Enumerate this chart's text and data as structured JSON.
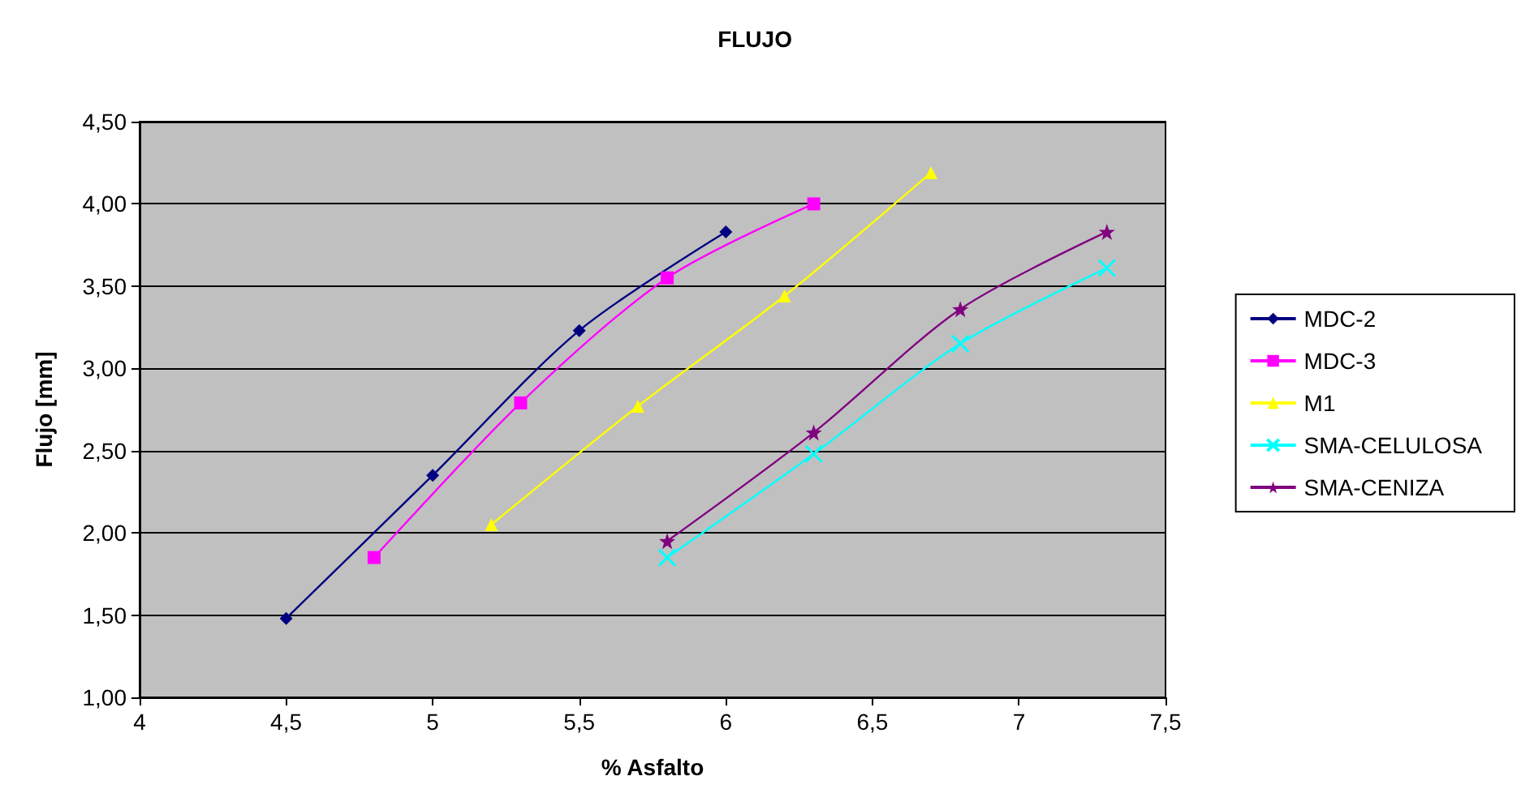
{
  "chart_data": {
    "type": "line",
    "title": "FLUJO",
    "xlabel": "% Asfalto",
    "ylabel": "Flujo [mm]",
    "xlim": [
      4,
      7.5
    ],
    "xticks": [
      {
        "value": 4,
        "label": "4"
      },
      {
        "value": 4.5,
        "label": "4,5"
      },
      {
        "value": 5,
        "label": "5"
      },
      {
        "value": 5.5,
        "label": "5,5"
      },
      {
        "value": 6,
        "label": "6"
      },
      {
        "value": 6.5,
        "label": "6,5"
      },
      {
        "value": 7,
        "label": "7"
      },
      {
        "value": 7.5,
        "label": "7,5"
      }
    ],
    "ylim": [
      1,
      4.5
    ],
    "yticks": [
      {
        "value": 1,
        "label": "1,00"
      },
      {
        "value": 1.5,
        "label": "1,50"
      },
      {
        "value": 2,
        "label": "2,00"
      },
      {
        "value": 2.5,
        "label": "2,50"
      },
      {
        "value": 3,
        "label": "3,00"
      },
      {
        "value": 3.5,
        "label": "3,50"
      },
      {
        "value": 4,
        "label": "4,00"
      },
      {
        "value": 4.5,
        "label": "4,50"
      }
    ],
    "grid": "y",
    "legend": "right",
    "series": [
      {
        "name": "MDC-2",
        "color": "#000080",
        "marker": "diamond",
        "x": [
          4.5,
          5,
          5.5,
          6
        ],
        "values": [
          1.48,
          2.35,
          3.23,
          3.83
        ]
      },
      {
        "name": "MDC-3",
        "color": "#ff00ff",
        "marker": "square",
        "x": [
          4.8,
          5.3,
          5.8,
          6.3
        ],
        "values": [
          1.85,
          2.79,
          3.55,
          4.0
        ]
      },
      {
        "name": "M1",
        "color": "#ffff00",
        "marker": "triangle",
        "x": [
          5.2,
          5.7,
          6.2,
          6.7
        ],
        "values": [
          2.05,
          2.77,
          3.44,
          4.19
        ]
      },
      {
        "name": "SMA-CELULOSA",
        "color": "#00ffff",
        "marker": "cross",
        "x": [
          5.8,
          6.3,
          6.8,
          7.3
        ],
        "values": [
          1.85,
          2.48,
          3.15,
          3.61
        ]
      },
      {
        "name": "SMA-CENIZA",
        "color": "#800080",
        "marker": "star",
        "x": [
          5.8,
          6.3,
          6.8,
          7.3
        ],
        "values": [
          1.95,
          2.61,
          3.36,
          3.83
        ]
      }
    ]
  }
}
